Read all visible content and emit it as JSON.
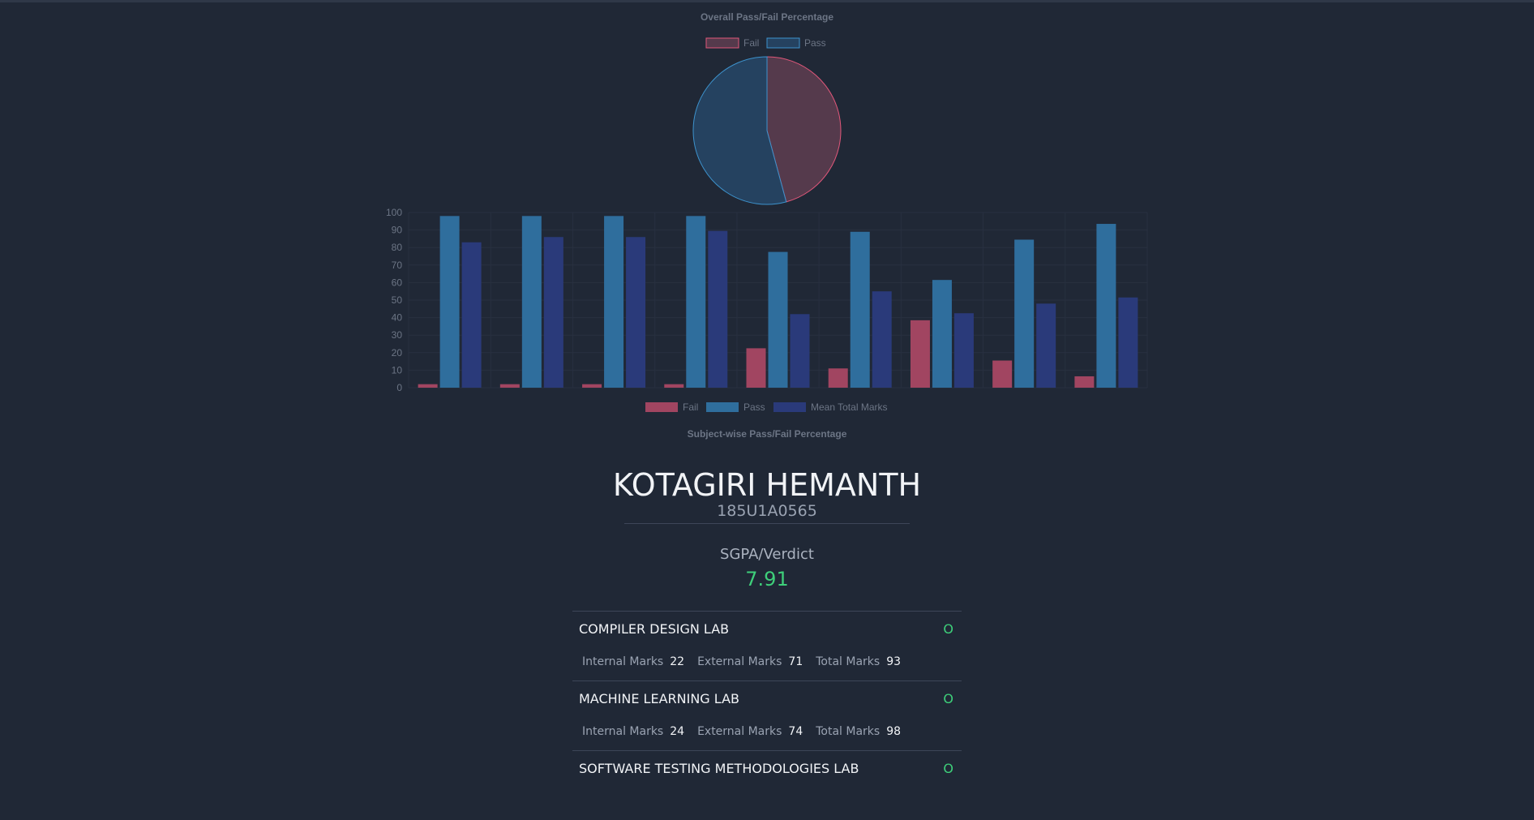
{
  "pie_chart": {
    "title": "Overall Pass/Fail Percentage",
    "legend": [
      "Fail",
      "Pass"
    ],
    "colors": {
      "fail_fill": "#553a4c",
      "fail_stroke": "#e0577a",
      "pass_fill": "#254260",
      "pass_stroke": "#3d92cc"
    }
  },
  "bar_chart": {
    "title": "Subject-wise Pass/Fail Percentage",
    "legend": [
      "Fail",
      "Pass",
      "Mean Total Marks"
    ],
    "colors": {
      "fail": "#a14561",
      "pass": "#2f6e9d",
      "mean": "#2a3a7a"
    }
  },
  "chart_data": [
    {
      "type": "pie",
      "title": "Overall Pass/Fail Percentage",
      "labels": [
        "Fail",
        "Pass"
      ],
      "values": [
        45.8,
        54.2
      ],
      "legend_position": "top"
    },
    {
      "type": "bar",
      "title": "Subject-wise Pass/Fail Percentage",
      "title_position": "bottom",
      "categories": [
        "",
        "",
        "",
        "",
        "",
        "",
        "",
        "",
        ""
      ],
      "series": [
        {
          "name": "Fail",
          "values": [
            2,
            2,
            2,
            2,
            22.5,
            11,
            38.5,
            15.5,
            6.5
          ]
        },
        {
          "name": "Pass",
          "values": [
            98,
            98,
            98,
            98,
            77.5,
            89,
            61.5,
            84.5,
            93.5
          ]
        },
        {
          "name": "Mean Total Marks",
          "values": [
            83,
            86,
            86,
            89.5,
            42,
            55,
            42.5,
            48,
            51.5
          ]
        }
      ],
      "ylim": [
        0,
        100
      ],
      "yticks": [
        0,
        10,
        20,
        30,
        40,
        50,
        60,
        70,
        80,
        90,
        100
      ],
      "grid": true,
      "legend_position": "bottom"
    }
  ],
  "student": {
    "name": "KOTAGIRI HEMANTH",
    "roll": "185U1A0565",
    "sgpa_label": "SGPA/Verdict",
    "sgpa_value": "7.91"
  },
  "subjects": [
    {
      "name": "COMPILER DESIGN LAB",
      "grade": "O",
      "internal_label": "Internal Marks",
      "internal": "22",
      "external_label": "External Marks",
      "external": "71",
      "total_label": "Total Marks",
      "total": "93"
    },
    {
      "name": "MACHINE LEARNING LAB",
      "grade": "O",
      "internal_label": "Internal Marks",
      "internal": "24",
      "external_label": "External Marks",
      "external": "74",
      "total_label": "Total Marks",
      "total": "98"
    },
    {
      "name": "SOFTWARE TESTING METHODOLOGIES LAB",
      "grade": "O"
    }
  ]
}
